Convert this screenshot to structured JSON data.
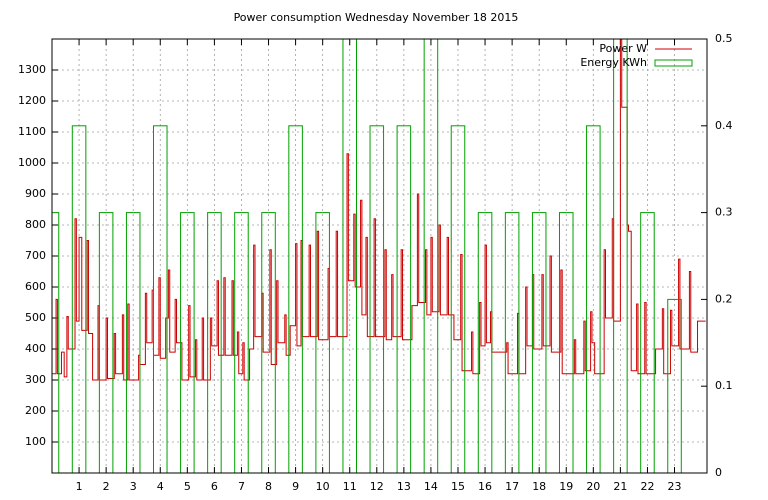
{
  "chart_data": {
    "type": "line",
    "title": "Power consumption Wednesday November 18 2015",
    "xlim": [
      0,
      24.2
    ],
    "xticks": [
      1,
      2,
      3,
      4,
      5,
      6,
      7,
      8,
      9,
      10,
      11,
      12,
      13,
      14,
      15,
      16,
      17,
      18,
      19,
      20,
      21,
      22,
      23
    ],
    "ylim": [
      0,
      1400
    ],
    "yticks": [
      100,
      200,
      300,
      400,
      500,
      600,
      700,
      800,
      900,
      1000,
      1100,
      1200,
      1300
    ],
    "y2lim": [
      0,
      0.5
    ],
    "y2ticks": [
      0,
      0.1,
      0.2,
      0.3,
      0.4,
      0.5
    ],
    "grid": true,
    "legend": "top-right",
    "series": [
      {
        "name": "Power W",
        "color": "#cc0000",
        "type": "steps",
        "x": [
          0.0,
          0.15,
          0.2,
          0.35,
          0.45,
          0.55,
          0.6,
          0.85,
          0.9,
          1.0,
          1.1,
          1.3,
          1.35,
          1.5,
          1.7,
          1.75,
          2.0,
          2.05,
          2.3,
          2.35,
          2.6,
          2.65,
          2.8,
          2.85,
          3.2,
          3.25,
          3.45,
          3.5,
          3.7,
          3.75,
          3.95,
          4.0,
          4.2,
          4.3,
          4.35,
          4.55,
          4.6,
          4.8,
          5.05,
          5.1,
          5.3,
          5.35,
          5.55,
          5.6,
          5.85,
          5.9,
          6.1,
          6.15,
          6.35,
          6.4,
          6.65,
          6.7,
          6.85,
          6.9,
          7.05,
          7.1,
          7.3,
          7.45,
          7.5,
          7.75,
          7.8,
          8.05,
          8.1,
          8.3,
          8.35,
          8.6,
          8.65,
          8.8,
          9.0,
          9.05,
          9.2,
          9.25,
          9.5,
          9.55,
          9.8,
          9.85,
          10.2,
          10.25,
          10.5,
          10.55,
          10.9,
          10.95,
          11.15,
          11.2,
          11.4,
          11.45,
          11.6,
          11.65,
          11.9,
          11.95,
          12.3,
          12.35,
          12.55,
          12.6,
          12.9,
          12.95,
          13.3,
          13.5,
          13.55,
          13.8,
          13.85,
          14.0,
          14.05,
          14.3,
          14.35,
          14.6,
          14.65,
          14.85,
          15.1,
          15.15,
          15.5,
          15.55,
          15.8,
          15.85,
          16.0,
          16.05,
          16.2,
          16.25,
          16.8,
          16.85,
          17.2,
          17.25,
          17.5,
          17.55,
          17.75,
          17.8,
          18.1,
          18.15,
          18.4,
          18.45,
          18.8,
          18.85,
          19.3,
          19.35,
          19.65,
          19.7,
          19.9,
          19.95,
          20.05,
          20.4,
          20.45,
          20.7,
          20.75,
          21.0,
          21.05,
          21.25,
          21.3,
          21.4,
          21.6,
          21.65,
          21.9,
          21.95,
          22.3,
          22.55,
          22.6,
          22.85,
          22.9,
          23.15,
          23.2,
          23.55,
          23.6,
          23.85,
          24.15
        ],
        "values": [
          320,
          560,
          320,
          390,
          310,
          505,
          400,
          820,
          490,
          760,
          460,
          750,
          450,
          300,
          540,
          300,
          500,
          305,
          450,
          320,
          510,
          300,
          545,
          300,
          380,
          350,
          580,
          420,
          590,
          380,
          630,
          370,
          500,
          655,
          390,
          560,
          420,
          300,
          540,
          310,
          430,
          300,
          500,
          300,
          500,
          410,
          620,
          380,
          630,
          380,
          620,
          380,
          455,
          320,
          420,
          300,
          400,
          735,
          440,
          580,
          390,
          720,
          350,
          620,
          420,
          510,
          380,
          475,
          740,
          410,
          750,
          440,
          735,
          440,
          780,
          430,
          660,
          440,
          780,
          440,
          1030,
          620,
          835,
          600,
          880,
          510,
          760,
          440,
          820,
          440,
          720,
          430,
          640,
          440,
          720,
          430,
          540,
          900,
          550,
          720,
          510,
          760,
          520,
          800,
          510,
          760,
          510,
          430,
          705,
          330,
          455,
          320,
          550,
          410,
          735,
          420,
          520,
          390,
          420,
          320,
          515,
          320,
          600,
          410,
          640,
          400,
          640,
          410,
          700,
          390,
          655,
          320,
          430,
          320,
          490,
          330,
          520,
          420,
          320,
          720,
          500,
          820,
          490,
          1400,
          1180,
          800,
          780,
          330,
          545,
          320,
          550,
          320,
          400,
          530,
          320,
          525,
          410,
          690,
          400,
          650,
          390,
          490,
          490
        ]
      },
      {
        "name": "Energy KWh",
        "color": "#00a000",
        "type": "boxes",
        "axis": "y2",
        "x": [
          0,
          1,
          2,
          3,
          4,
          5,
          6,
          7,
          8,
          9,
          10,
          11,
          12,
          13,
          14,
          15,
          16,
          17,
          18,
          19,
          20,
          21,
          22,
          23
        ],
        "values": [
          0.3,
          0.4,
          0.3,
          0.3,
          0.4,
          0.3,
          0.3,
          0.3,
          0.3,
          0.4,
          0.3,
          0.5,
          0.4,
          0.4,
          0.5,
          0.4,
          0.3,
          0.3,
          0.3,
          0.3,
          0.4,
          0.5,
          0.3,
          0.2
        ]
      }
    ]
  }
}
